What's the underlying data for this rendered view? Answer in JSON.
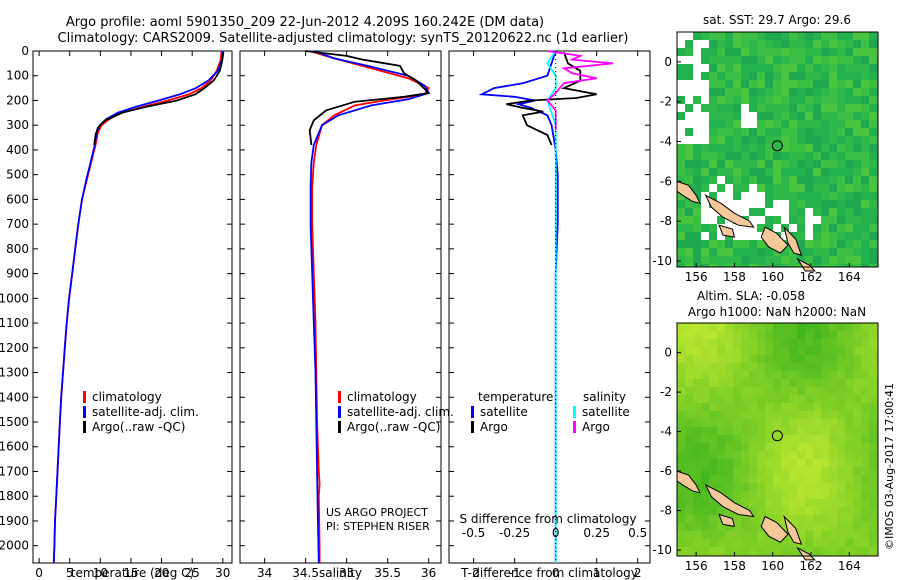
{
  "header": {
    "line1": "Argo profile: aoml 5901350_209 22-Jun-2012 4.209S 160.242E (DM data)",
    "line2": "Climatology: CARS2009. Satellite-adjusted climatology: synTS_20120622.nc (1d earlier)"
  },
  "credits": {
    "project": "US ARGO PROJECT",
    "pi": "PI: STEPHEN RISER",
    "imos": "©IMOS 03-Aug-2017 17:00:41"
  },
  "colors": {
    "climatology": "#ff0000",
    "satellite": "#0000ff",
    "argo": "#000000",
    "salinity_satellite": "#00ffff",
    "salinity_argo": "#ff00ff",
    "land": "#f5c89a",
    "nodata": "#ffffff"
  },
  "chart_data": [
    {
      "type": "line",
      "id": "temperature-profile",
      "xlabel": "temperature (deg C)",
      "xlim": [
        -1,
        31.5
      ],
      "ylim": [
        2070,
        0
      ],
      "xticks": [
        0,
        5,
        10,
        15,
        20,
        25,
        30
      ],
      "yticks": [
        0,
        100,
        200,
        300,
        400,
        500,
        600,
        700,
        800,
        900,
        1000,
        1100,
        1200,
        1300,
        1400,
        1500,
        1600,
        1700,
        1800,
        1900,
        2000
      ],
      "legend": [
        "climatology",
        "satellite-adj. clim.",
        "Argo(..raw -QC)"
      ],
      "series": [
        {
          "name": "climatology",
          "color": "#ff0000",
          "points": [
            [
              29.8,
              0
            ],
            [
              29.6,
              40
            ],
            [
              29.0,
              80
            ],
            [
              28.0,
              120
            ],
            [
              26.5,
              150
            ],
            [
              24.5,
              175
            ],
            [
              21.0,
              200
            ],
            [
              17.0,
              225
            ],
            [
              13.5,
              250
            ],
            [
              11.5,
              275
            ],
            [
              10.2,
              300
            ],
            [
              9.6,
              330
            ],
            [
              9.2,
              380
            ],
            [
              8.5,
              450
            ],
            [
              7.8,
              520
            ],
            [
              7.0,
              600
            ],
            [
              6.4,
              700
            ],
            [
              5.9,
              800
            ],
            [
              5.4,
              900
            ],
            [
              4.9,
              1000
            ],
            [
              4.5,
              1100
            ],
            [
              4.2,
              1200
            ],
            [
              3.9,
              1300
            ],
            [
              3.6,
              1400
            ],
            [
              3.4,
              1500
            ],
            [
              3.2,
              1600
            ],
            [
              3.0,
              1700
            ],
            [
              2.8,
              1800
            ],
            [
              2.6,
              1900
            ],
            [
              2.5,
              2000
            ],
            [
              2.4,
              2070
            ]
          ]
        },
        {
          "name": "satellite-adj. clim.",
          "color": "#0000ff",
          "points": [
            [
              30.0,
              0
            ],
            [
              29.8,
              40
            ],
            [
              29.2,
              80
            ],
            [
              27.6,
              120
            ],
            [
              25.6,
              150
            ],
            [
              23.0,
              175
            ],
            [
              19.5,
              200
            ],
            [
              15.8,
              225
            ],
            [
              12.8,
              250
            ],
            [
              11.0,
              275
            ],
            [
              9.9,
              300
            ],
            [
              9.4,
              330
            ],
            [
              9.1,
              380
            ],
            [
              8.4,
              450
            ],
            [
              7.7,
              520
            ],
            [
              7.0,
              600
            ],
            [
              6.4,
              700
            ],
            [
              5.9,
              800
            ],
            [
              5.4,
              900
            ],
            [
              4.9,
              1000
            ],
            [
              4.5,
              1100
            ],
            [
              4.2,
              1200
            ],
            [
              3.9,
              1300
            ],
            [
              3.6,
              1400
            ],
            [
              3.4,
              1500
            ],
            [
              3.2,
              1600
            ],
            [
              3.0,
              1700
            ],
            [
              2.8,
              1800
            ],
            [
              2.6,
              1900
            ],
            [
              2.5,
              2000
            ],
            [
              2.4,
              2070
            ]
          ]
        },
        {
          "name": "Argo(..raw -QC)",
          "color": "#000000",
          "points": [
            [
              30.1,
              5
            ],
            [
              29.9,
              40
            ],
            [
              29.5,
              80
            ],
            [
              28.5,
              120
            ],
            [
              27.0,
              150
            ],
            [
              25.5,
              175
            ],
            [
              22.5,
              200
            ],
            [
              17.5,
              225
            ],
            [
              13.5,
              250
            ],
            [
              10.8,
              280
            ],
            [
              9.6,
              310
            ],
            [
              9.2,
              340
            ],
            [
              9.0,
              380
            ]
          ]
        }
      ]
    },
    {
      "type": "line",
      "id": "salinity-profile",
      "xlabel": "salinity",
      "xlim": [
        33.7,
        36.15
      ],
      "ylim": [
        2070,
        0
      ],
      "xticks": [
        34,
        34.5,
        35,
        35.5,
        36
      ],
      "legend": [
        "climatology",
        "satellite-adj. clim.",
        "Argo(..raw -QC)"
      ],
      "series": [
        {
          "name": "climatology",
          "color": "#ff0000",
          "points": [
            [
              34.55,
              0
            ],
            [
              34.85,
              30
            ],
            [
              35.3,
              70
            ],
            [
              35.75,
              110
            ],
            [
              36.0,
              150
            ],
            [
              35.95,
              175
            ],
            [
              35.55,
              195
            ],
            [
              35.1,
              220
            ],
            [
              34.85,
              260
            ],
            [
              34.7,
              300
            ],
            [
              34.63,
              380
            ],
            [
              34.6,
              450
            ],
            [
              34.58,
              550
            ],
            [
              34.58,
              700
            ],
            [
              34.6,
              900
            ],
            [
              34.62,
              1100
            ],
            [
              34.63,
              1300
            ],
            [
              34.64,
              1500
            ],
            [
              34.66,
              1700
            ],
            [
              34.67,
              1750
            ],
            [
              34.66,
              1800
            ],
            [
              34.67,
              2000
            ],
            [
              34.67,
              2070
            ]
          ]
        },
        {
          "name": "satellite-adj. clim.",
          "color": "#0000ff",
          "points": [
            [
              34.6,
              0
            ],
            [
              34.85,
              30
            ],
            [
              35.25,
              60
            ],
            [
              35.75,
              100
            ],
            [
              35.95,
              140
            ],
            [
              36.0,
              170
            ],
            [
              35.75,
              195
            ],
            [
              35.3,
              220
            ],
            [
              34.9,
              260
            ],
            [
              34.7,
              300
            ],
            [
              34.6,
              380
            ],
            [
              34.57,
              450
            ],
            [
              34.56,
              550
            ],
            [
              34.56,
              700
            ],
            [
              34.58,
              900
            ],
            [
              34.6,
              1100
            ],
            [
              34.62,
              1300
            ],
            [
              34.63,
              1500
            ],
            [
              34.64,
              1700
            ],
            [
              34.65,
              1900
            ],
            [
              34.66,
              2070
            ]
          ]
        },
        {
          "name": "Argo(..raw -QC)",
          "color": "#000000",
          "points": [
            [
              34.5,
              0
            ],
            [
              35.0,
              20
            ],
            [
              35.2,
              35
            ],
            [
              35.65,
              60
            ],
            [
              35.7,
              90
            ],
            [
              35.85,
              120
            ],
            [
              36.0,
              170
            ],
            [
              35.7,
              185
            ],
            [
              35.1,
              205
            ],
            [
              34.75,
              240
            ],
            [
              34.6,
              280
            ],
            [
              34.55,
              320
            ],
            [
              34.57,
              380
            ]
          ]
        }
      ]
    },
    {
      "type": "line",
      "id": "difference-profile",
      "xlabel": "T difference from climatology",
      "x2label": "S difference from climatology",
      "xlim": [
        -2.6,
        2.3
      ],
      "x2lim": [
        -0.65,
        0.575
      ],
      "ylim": [
        2070,
        0
      ],
      "xticks": [
        -2,
        -1,
        0,
        1,
        2
      ],
      "xtick_labels": [
        "-2",
        "-1",
        "0",
        "1",
        "2"
      ],
      "x2ticks": [
        -0.5,
        -0.25,
        0,
        0.25,
        0.5
      ],
      "x2tick_labels": [
        "-0.5",
        "-0.25",
        "0",
        "0.25",
        "0.5"
      ],
      "legend_groups": [
        {
          "title": "temperature",
          "items": [
            "satellite",
            "Argo"
          ]
        },
        {
          "title": "salinity",
          "items": [
            "satellite",
            "Argo"
          ]
        }
      ],
      "series": [
        {
          "name": "satellite",
          "group": "temperature",
          "axis": "T",
          "color": "#0000ff",
          "points": [
            [
              0.0,
              0
            ],
            [
              -0.2,
              100
            ],
            [
              -0.8,
              130
            ],
            [
              -1.5,
              150
            ],
            [
              -1.8,
              175
            ],
            [
              -1.0,
              185
            ],
            [
              -0.5,
              200
            ],
            [
              -0.9,
              215
            ],
            [
              -0.6,
              230
            ],
            [
              -0.2,
              260
            ],
            [
              -0.1,
              300
            ],
            [
              0.0,
              400
            ],
            [
              0.05,
              500
            ],
            [
              0.05,
              700
            ],
            [
              0.0,
              900
            ],
            [
              0.0,
              1200
            ],
            [
              0.0,
              1500
            ],
            [
              0.0,
              1800
            ],
            [
              0.0,
              2070
            ]
          ]
        },
        {
          "name": "Argo",
          "group": "temperature",
          "axis": "T",
          "color": "#000000",
          "points": [
            [
              0.2,
              5
            ],
            [
              0.3,
              50
            ],
            [
              0.6,
              80
            ],
            [
              0.6,
              120
            ],
            [
              0.2,
              150
            ],
            [
              1.0,
              175
            ],
            [
              0.5,
              190
            ],
            [
              -0.6,
              200
            ],
            [
              -1.2,
              215
            ],
            [
              -0.8,
              230
            ],
            [
              -0.3,
              245
            ],
            [
              -0.8,
              260
            ],
            [
              -0.7,
              300
            ],
            [
              -0.2,
              340
            ],
            [
              -0.1,
              380
            ]
          ]
        },
        {
          "name": "satellite",
          "group": "salinity",
          "axis": "S",
          "color": "#00ffff",
          "points": [
            [
              0.0,
              0
            ],
            [
              -0.05,
              50
            ],
            [
              0.0,
              100
            ],
            [
              0.0,
              150
            ],
            [
              -0.05,
              200
            ],
            [
              0.0,
              300
            ],
            [
              0.0,
              500
            ],
            [
              0.0,
              800
            ],
            [
              0.0,
              1100
            ],
            [
              0.0,
              1400
            ],
            [
              0.0,
              1700
            ],
            [
              0.0,
              2070
            ]
          ]
        },
        {
          "name": "Argo",
          "group": "salinity",
          "axis": "S",
          "color": "#ff00ff",
          "points": [
            [
              -0.05,
              0
            ],
            [
              0.15,
              20
            ],
            [
              0.1,
              35
            ],
            [
              0.35,
              50
            ],
            [
              0.05,
              70
            ],
            [
              0.1,
              90
            ],
            [
              0.25,
              110
            ],
            [
              0.05,
              130
            ],
            [
              0.0,
              170
            ],
            [
              -0.05,
              200
            ],
            [
              0.0,
              240
            ],
            [
              0.0,
              320
            ]
          ]
        }
      ]
    },
    {
      "type": "heatmap",
      "id": "sst-map",
      "title": "sat. SST: 29.7  Argo: 29.6",
      "xlim": [
        155,
        165.5
      ],
      "ylim": [
        -10.3,
        1.5
      ],
      "xticks": [
        156,
        158,
        160,
        162,
        164
      ],
      "yticks": [
        0,
        -2,
        -4,
        -6,
        -8,
        -10
      ],
      "marker": {
        "lon": 160.242,
        "lat": -4.209
      },
      "palette": "green"
    },
    {
      "type": "heatmap",
      "id": "sla-map",
      "title": "Altim. SLA: -0.058",
      "subtitle": "Argo h1000: NaN h2000: NaN",
      "xlim": [
        155,
        165.5
      ],
      "ylim": [
        -10.3,
        1.5
      ],
      "xticks": [
        156,
        158,
        160,
        162,
        164
      ],
      "yticks": [
        0,
        -2,
        -4,
        -6,
        -8,
        -10
      ],
      "marker": {
        "lon": 160.242,
        "lat": -4.209
      },
      "palette": "yellow-green"
    }
  ]
}
